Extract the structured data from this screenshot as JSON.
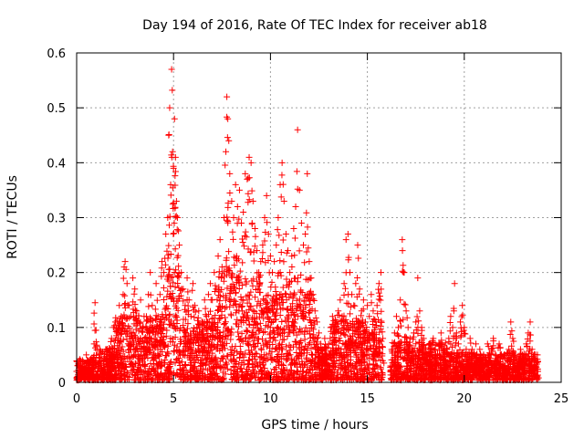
{
  "chart_data": {
    "type": "scatter",
    "title": "Day 194 of 2016, Rate Of TEC Index for receiver ab18",
    "xlabel": "GPS time / hours",
    "ylabel": "ROTI / TECUs",
    "xlim": [
      0,
      25
    ],
    "ylim": [
      0,
      0.6
    ],
    "xticks": [
      0,
      5,
      10,
      15,
      20,
      25
    ],
    "yticks": [
      0,
      0.1,
      0.2,
      0.3,
      0.4,
      0.5,
      0.6
    ],
    "ytick_labels": [
      "0",
      "0.1",
      "0.2",
      "0.3",
      "0.4",
      "0.5",
      "0.6"
    ],
    "grid": true,
    "marker": "+",
    "color": "#ff0000",
    "series": [
      {
        "points": [
          [
            0.0,
            0.02
          ],
          [
            0.1,
            0.035
          ],
          [
            0.2,
            0.015
          ],
          [
            0.3,
            0.04
          ],
          [
            0.4,
            0.025
          ],
          [
            0.5,
            0.05
          ],
          [
            0.6,
            0.03
          ],
          [
            0.7,
            0.02
          ],
          [
            0.8,
            0.045
          ],
          [
            0.9,
            0.07
          ],
          [
            0.95,
            0.145
          ],
          [
            1.0,
            0.095
          ],
          [
            1.1,
            0.035
          ],
          [
            1.2,
            0.06
          ],
          [
            1.3,
            0.025
          ],
          [
            1.4,
            0.04
          ],
          [
            1.5,
            0.06
          ],
          [
            1.6,
            0.03
          ],
          [
            1.7,
            0.05
          ],
          [
            1.8,
            0.08
          ],
          [
            1.9,
            0.1
          ],
          [
            2.0,
            0.11
          ],
          [
            2.1,
            0.09
          ],
          [
            2.2,
            0.14
          ],
          [
            2.3,
            0.12
          ],
          [
            2.4,
            0.16
          ],
          [
            2.45,
            0.21
          ],
          [
            2.5,
            0.22
          ],
          [
            2.6,
            0.18
          ],
          [
            2.7,
            0.14
          ],
          [
            2.8,
            0.12
          ],
          [
            2.9,
            0.19
          ],
          [
            3.0,
            0.17
          ],
          [
            3.1,
            0.13
          ],
          [
            3.2,
            0.11
          ],
          [
            3.3,
            0.15
          ],
          [
            3.4,
            0.1
          ],
          [
            3.5,
            0.08
          ],
          [
            3.6,
            0.12
          ],
          [
            3.7,
            0.16
          ],
          [
            3.8,
            0.2
          ],
          [
            3.9,
            0.14
          ],
          [
            4.0,
            0.1
          ],
          [
            4.1,
            0.18
          ],
          [
            4.2,
            0.12
          ],
          [
            4.3,
            0.16
          ],
          [
            4.4,
            0.22
          ],
          [
            4.5,
            0.2
          ],
          [
            4.6,
            0.27
          ],
          [
            4.7,
            0.3
          ],
          [
            4.75,
            0.45
          ],
          [
            4.8,
            0.5
          ],
          [
            4.85,
            0.36
          ],
          [
            4.9,
            0.57
          ],
          [
            4.95,
            0.42
          ],
          [
            5.0,
            0.39
          ],
          [
            5.05,
            0.48
          ],
          [
            5.1,
            0.41
          ],
          [
            5.15,
            0.33
          ],
          [
            5.2,
            0.3
          ],
          [
            5.3,
            0.25
          ],
          [
            5.4,
            0.2
          ],
          [
            5.5,
            0.17
          ],
          [
            5.6,
            0.14
          ],
          [
            5.7,
            0.19
          ],
          [
            5.8,
            0.15
          ],
          [
            5.9,
            0.12
          ],
          [
            6.0,
            0.18
          ],
          [
            6.1,
            0.14
          ],
          [
            6.2,
            0.1
          ],
          [
            6.3,
            0.13
          ],
          [
            6.4,
            0.08
          ],
          [
            6.5,
            0.11
          ],
          [
            6.6,
            0.15
          ],
          [
            6.7,
            0.12
          ],
          [
            6.8,
            0.16
          ],
          [
            6.9,
            0.18
          ],
          [
            7.0,
            0.15
          ],
          [
            7.1,
            0.2
          ],
          [
            7.2,
            0.17
          ],
          [
            7.3,
            0.23
          ],
          [
            7.4,
            0.26
          ],
          [
            7.5,
            0.21
          ],
          [
            7.6,
            0.3
          ],
          [
            7.7,
            0.42
          ],
          [
            7.75,
            0.52
          ],
          [
            7.8,
            0.48
          ],
          [
            7.85,
            0.44
          ],
          [
            7.9,
            0.38
          ],
          [
            8.0,
            0.33
          ],
          [
            8.1,
            0.3
          ],
          [
            8.2,
            0.36
          ],
          [
            8.3,
            0.32
          ],
          [
            8.4,
            0.35
          ],
          [
            8.5,
            0.29
          ],
          [
            8.6,
            0.31
          ],
          [
            8.7,
            0.38
          ],
          [
            8.8,
            0.37
          ],
          [
            8.9,
            0.41
          ],
          [
            9.0,
            0.4
          ],
          [
            9.1,
            0.33
          ],
          [
            9.2,
            0.28
          ],
          [
            9.3,
            0.24
          ],
          [
            9.4,
            0.2
          ],
          [
            9.5,
            0.22
          ],
          [
            9.6,
            0.25
          ],
          [
            9.7,
            0.3
          ],
          [
            9.8,
            0.34
          ],
          [
            9.9,
            0.27
          ],
          [
            10.0,
            0.23
          ],
          [
            10.1,
            0.2
          ],
          [
            10.2,
            0.22
          ],
          [
            10.3,
            0.25
          ],
          [
            10.4,
            0.3
          ],
          [
            10.5,
            0.36
          ],
          [
            10.6,
            0.4
          ],
          [
            10.7,
            0.33
          ],
          [
            10.8,
            0.27
          ],
          [
            10.9,
            0.24
          ],
          [
            11.0,
            0.2
          ],
          [
            11.1,
            0.23
          ],
          [
            11.2,
            0.28
          ],
          [
            11.3,
            0.32
          ],
          [
            11.4,
            0.46
          ],
          [
            11.5,
            0.35
          ],
          [
            11.6,
            0.29
          ],
          [
            11.7,
            0.25
          ],
          [
            11.8,
            0.27
          ],
          [
            11.9,
            0.38
          ],
          [
            12.0,
            0.22
          ],
          [
            12.1,
            0.19
          ],
          [
            12.2,
            0.16
          ],
          [
            12.3,
            0.13
          ],
          [
            12.4,
            0.11
          ],
          [
            12.5,
            0.09
          ],
          [
            12.6,
            0.07
          ],
          [
            12.7,
            0.06
          ],
          [
            12.8,
            0.08
          ],
          [
            12.9,
            0.05
          ],
          [
            13.0,
            0.07
          ],
          [
            13.1,
            0.1
          ],
          [
            13.2,
            0.12
          ],
          [
            13.3,
            0.09
          ],
          [
            13.4,
            0.11
          ],
          [
            13.5,
            0.13
          ],
          [
            13.6,
            0.15
          ],
          [
            13.7,
            0.12
          ],
          [
            13.8,
            0.18
          ],
          [
            13.9,
            0.26
          ],
          [
            14.0,
            0.27
          ],
          [
            14.1,
            0.2
          ],
          [
            14.2,
            0.16
          ],
          [
            14.3,
            0.14
          ],
          [
            14.4,
            0.18
          ],
          [
            14.5,
            0.25
          ],
          [
            14.6,
            0.17
          ],
          [
            14.7,
            0.13
          ],
          [
            14.8,
            0.15
          ],
          [
            14.9,
            0.11
          ],
          [
            15.0,
            0.14
          ],
          [
            15.1,
            0.12
          ],
          [
            15.2,
            0.16
          ],
          [
            15.3,
            0.13
          ],
          [
            15.4,
            0.1
          ],
          [
            15.5,
            0.14
          ],
          [
            15.6,
            0.18
          ],
          [
            15.7,
            0.2
          ],
          [
            15.8,
            0.08
          ],
          [
            16.2,
            0.03
          ],
          [
            16.3,
            0.06
          ],
          [
            16.4,
            0.09
          ],
          [
            16.5,
            0.12
          ],
          [
            16.6,
            0.1
          ],
          [
            16.7,
            0.15
          ],
          [
            16.8,
            0.26
          ],
          [
            16.9,
            0.2
          ],
          [
            17.0,
            0.13
          ],
          [
            17.1,
            0.1
          ],
          [
            17.2,
            0.08
          ],
          [
            17.3,
            0.06
          ],
          [
            17.4,
            0.09
          ],
          [
            17.5,
            0.11
          ],
          [
            17.6,
            0.19
          ],
          [
            17.7,
            0.13
          ],
          [
            17.8,
            0.1
          ],
          [
            17.9,
            0.08
          ],
          [
            18.0,
            0.06
          ],
          [
            18.1,
            0.04
          ],
          [
            18.2,
            0.07
          ],
          [
            18.3,
            0.05
          ],
          [
            18.4,
            0.08
          ],
          [
            18.5,
            0.06
          ],
          [
            18.6,
            0.04
          ],
          [
            18.7,
            0.07
          ],
          [
            18.8,
            0.09
          ],
          [
            18.9,
            0.05
          ],
          [
            19.0,
            0.04
          ],
          [
            19.1,
            0.06
          ],
          [
            19.2,
            0.08
          ],
          [
            19.3,
            0.12
          ],
          [
            19.4,
            0.1
          ],
          [
            19.5,
            0.18
          ],
          [
            19.6,
            0.09
          ],
          [
            19.7,
            0.07
          ],
          [
            19.8,
            0.11
          ],
          [
            19.9,
            0.14
          ],
          [
            20.0,
            0.1
          ],
          [
            20.1,
            0.06
          ],
          [
            20.2,
            0.04
          ],
          [
            20.3,
            0.08
          ],
          [
            20.4,
            0.06
          ],
          [
            20.5,
            0.05
          ],
          [
            20.6,
            0.07
          ],
          [
            20.7,
            0.04
          ],
          [
            20.8,
            0.06
          ],
          [
            20.9,
            0.03
          ],
          [
            21.0,
            0.05
          ],
          [
            21.1,
            0.04
          ],
          [
            21.2,
            0.07
          ],
          [
            21.3,
            0.05
          ],
          [
            21.4,
            0.06
          ],
          [
            21.5,
            0.08
          ],
          [
            21.6,
            0.05
          ],
          [
            21.7,
            0.04
          ],
          [
            21.8,
            0.07
          ],
          [
            21.9,
            0.05
          ],
          [
            22.0,
            0.03
          ],
          [
            22.1,
            0.05
          ],
          [
            22.2,
            0.04
          ],
          [
            22.3,
            0.06
          ],
          [
            22.4,
            0.11
          ],
          [
            22.5,
            0.08
          ],
          [
            22.6,
            0.05
          ],
          [
            22.7,
            0.03
          ],
          [
            22.8,
            0.04
          ],
          [
            22.9,
            0.06
          ],
          [
            23.0,
            0.05
          ],
          [
            23.1,
            0.04
          ],
          [
            23.2,
            0.07
          ],
          [
            23.3,
            0.09
          ],
          [
            23.4,
            0.11
          ],
          [
            23.5,
            0.06
          ],
          [
            23.6,
            0.04
          ],
          [
            23.7,
            0.03
          ],
          [
            23.8,
            0.02
          ]
        ],
        "dense_bands": [
          {
            "x": [
              0.0,
              0.9
            ],
            "y_max": 0.04
          },
          {
            "x": [
              0.9,
              2.0
            ],
            "y_max": 0.06
          },
          {
            "x": [
              2.0,
              4.6
            ],
            "y_max": 0.12
          },
          {
            "x": [
              4.6,
              5.3
            ],
            "y_max": 0.2
          },
          {
            "x": [
              5.3,
              7.3
            ],
            "y_max": 0.11
          },
          {
            "x": [
              7.3,
              9.6
            ],
            "y_max": 0.19
          },
          {
            "x": [
              9.6,
              12.3
            ],
            "y_max": 0.16
          },
          {
            "x": [
              12.3,
              13.2
            ],
            "y_max": 0.06
          },
          {
            "x": [
              13.2,
              15.8
            ],
            "y_max": 0.11
          },
          {
            "x": [
              16.2,
              19.3
            ],
            "y_max": 0.07
          },
          {
            "x": [
              19.3,
              23.8
            ],
            "y_max": 0.05
          }
        ]
      }
    ]
  }
}
